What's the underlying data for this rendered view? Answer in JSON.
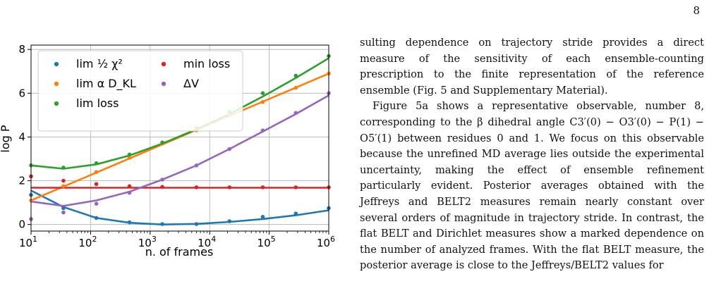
{
  "page_number": "8",
  "chart_data": {
    "type": "scatter",
    "xlabel": "n. of frames",
    "ylabel": "log P",
    "xscale": "log",
    "xlim": [
      10,
      1000000
    ],
    "ylim": [
      -0.3,
      8.2
    ],
    "xticks": [
      10,
      100,
      1000,
      10000,
      100000,
      1000000
    ],
    "xtick_labels": [
      [
        "10",
        "1"
      ],
      [
        "10",
        "2"
      ],
      [
        "10",
        "3"
      ],
      [
        "10",
        "4"
      ],
      [
        "10",
        "5"
      ],
      [
        "10",
        "6"
      ]
    ],
    "yticks": [
      0,
      2,
      4,
      6,
      8
    ],
    "ytick_labels": [
      "0",
      "2",
      "4",
      "6",
      "8"
    ],
    "grid": true,
    "legend_position": "top-left",
    "series": [
      {
        "name": "lim ½ χ²",
        "color": "#1f77b4",
        "points_x": [
          10,
          35,
          125,
          450,
          1600,
          6000,
          21500,
          78000,
          280000,
          1000000
        ],
        "points_y": [
          1.35,
          0.75,
          0.3,
          0.1,
          0.02,
          0.02,
          0.15,
          0.35,
          0.5,
          0.75
        ],
        "fit_x": [
          10,
          35,
          125,
          450,
          1600,
          6000,
          21500,
          78000,
          280000,
          1000000
        ],
        "fit_y": [
          1.55,
          0.8,
          0.3,
          0.08,
          0.0,
          0.03,
          0.12,
          0.25,
          0.42,
          0.65
        ]
      },
      {
        "name": "lim α D_KL",
        "color": "#ff7f0e",
        "points_x": [
          10,
          35,
          125,
          450,
          1600,
          6000,
          21500,
          78000,
          280000,
          1000000
        ],
        "points_y": [
          1.1,
          1.75,
          2.4,
          3.05,
          3.7,
          4.3,
          5.0,
          5.6,
          6.25,
          6.9
        ],
        "fit_x": [
          10,
          1000000
        ],
        "fit_y": [
          1.1,
          6.9
        ]
      },
      {
        "name": "lim loss",
        "color": "#2ca02c",
        "points_x": [
          10,
          35,
          125,
          450,
          1600,
          6000,
          21500,
          78000,
          280000,
          1000000
        ],
        "points_y": [
          2.7,
          2.6,
          2.8,
          3.2,
          3.75,
          4.4,
          5.15,
          6.0,
          6.8,
          7.7
        ],
        "fit_x": [
          10,
          35,
          125,
          450,
          1600,
          6000,
          21500,
          78000,
          280000,
          1000000
        ],
        "fit_y": [
          2.7,
          2.55,
          2.75,
          3.15,
          3.7,
          4.35,
          5.05,
          5.85,
          6.7,
          7.6
        ]
      },
      {
        "name": "min loss",
        "color": "#d62728",
        "points_x": [
          10,
          35,
          125,
          450,
          1600,
          6000,
          21500,
          78000,
          280000,
          1000000
        ],
        "points_y": [
          2.2,
          2.0,
          1.85,
          1.75,
          1.72,
          1.7,
          1.7,
          1.7,
          1.7,
          1.7
        ],
        "fit_x": [
          10,
          1000000
        ],
        "fit_y": [
          1.68,
          1.68
        ]
      },
      {
        "name": "ΔV",
        "color": "#9467bd",
        "points_x": [
          10,
          35,
          125,
          450,
          1600,
          6000,
          21500,
          78000,
          280000,
          1000000
        ],
        "points_y": [
          0.25,
          0.55,
          0.95,
          1.45,
          2.05,
          2.7,
          3.45,
          4.3,
          5.1,
          6.0
        ],
        "fit_x": [
          10,
          35,
          125,
          450,
          1600,
          6000,
          21500,
          78000,
          280000,
          1000000
        ],
        "fit_y": [
          1.05,
          0.85,
          1.1,
          1.5,
          2.05,
          2.7,
          3.45,
          4.25,
          5.05,
          5.9
        ]
      }
    ]
  },
  "paragraphs": [
    "sulting dependence on trajectory stride provides a direct measure of the sensitivity of each ensemble-counting prescription to the finite representation of the reference ensemble (Fig. 5 and Supplementary Material).",
    "Figure 5a shows a representative observable, number 8, corresponding to the β dihedral angle C3′(0) − O3′(0) − P(1) − O5′(1) between residues 0 and 1. We focus on this observable because the unrefined MD average lies outside the experimental uncertainty, making the effect of ensemble refinement particularly evident. Posterior averages obtained with the Jeffreys and BELT2 measures remain nearly constant over several orders of magnitude in trajectory stride. In contrast, the flat BELT and Dirichlet measures show a marked dependence on the number of analyzed frames. With the flat BELT measure, the posterior average is close to the Jeffreys/BELT2 values for"
  ]
}
